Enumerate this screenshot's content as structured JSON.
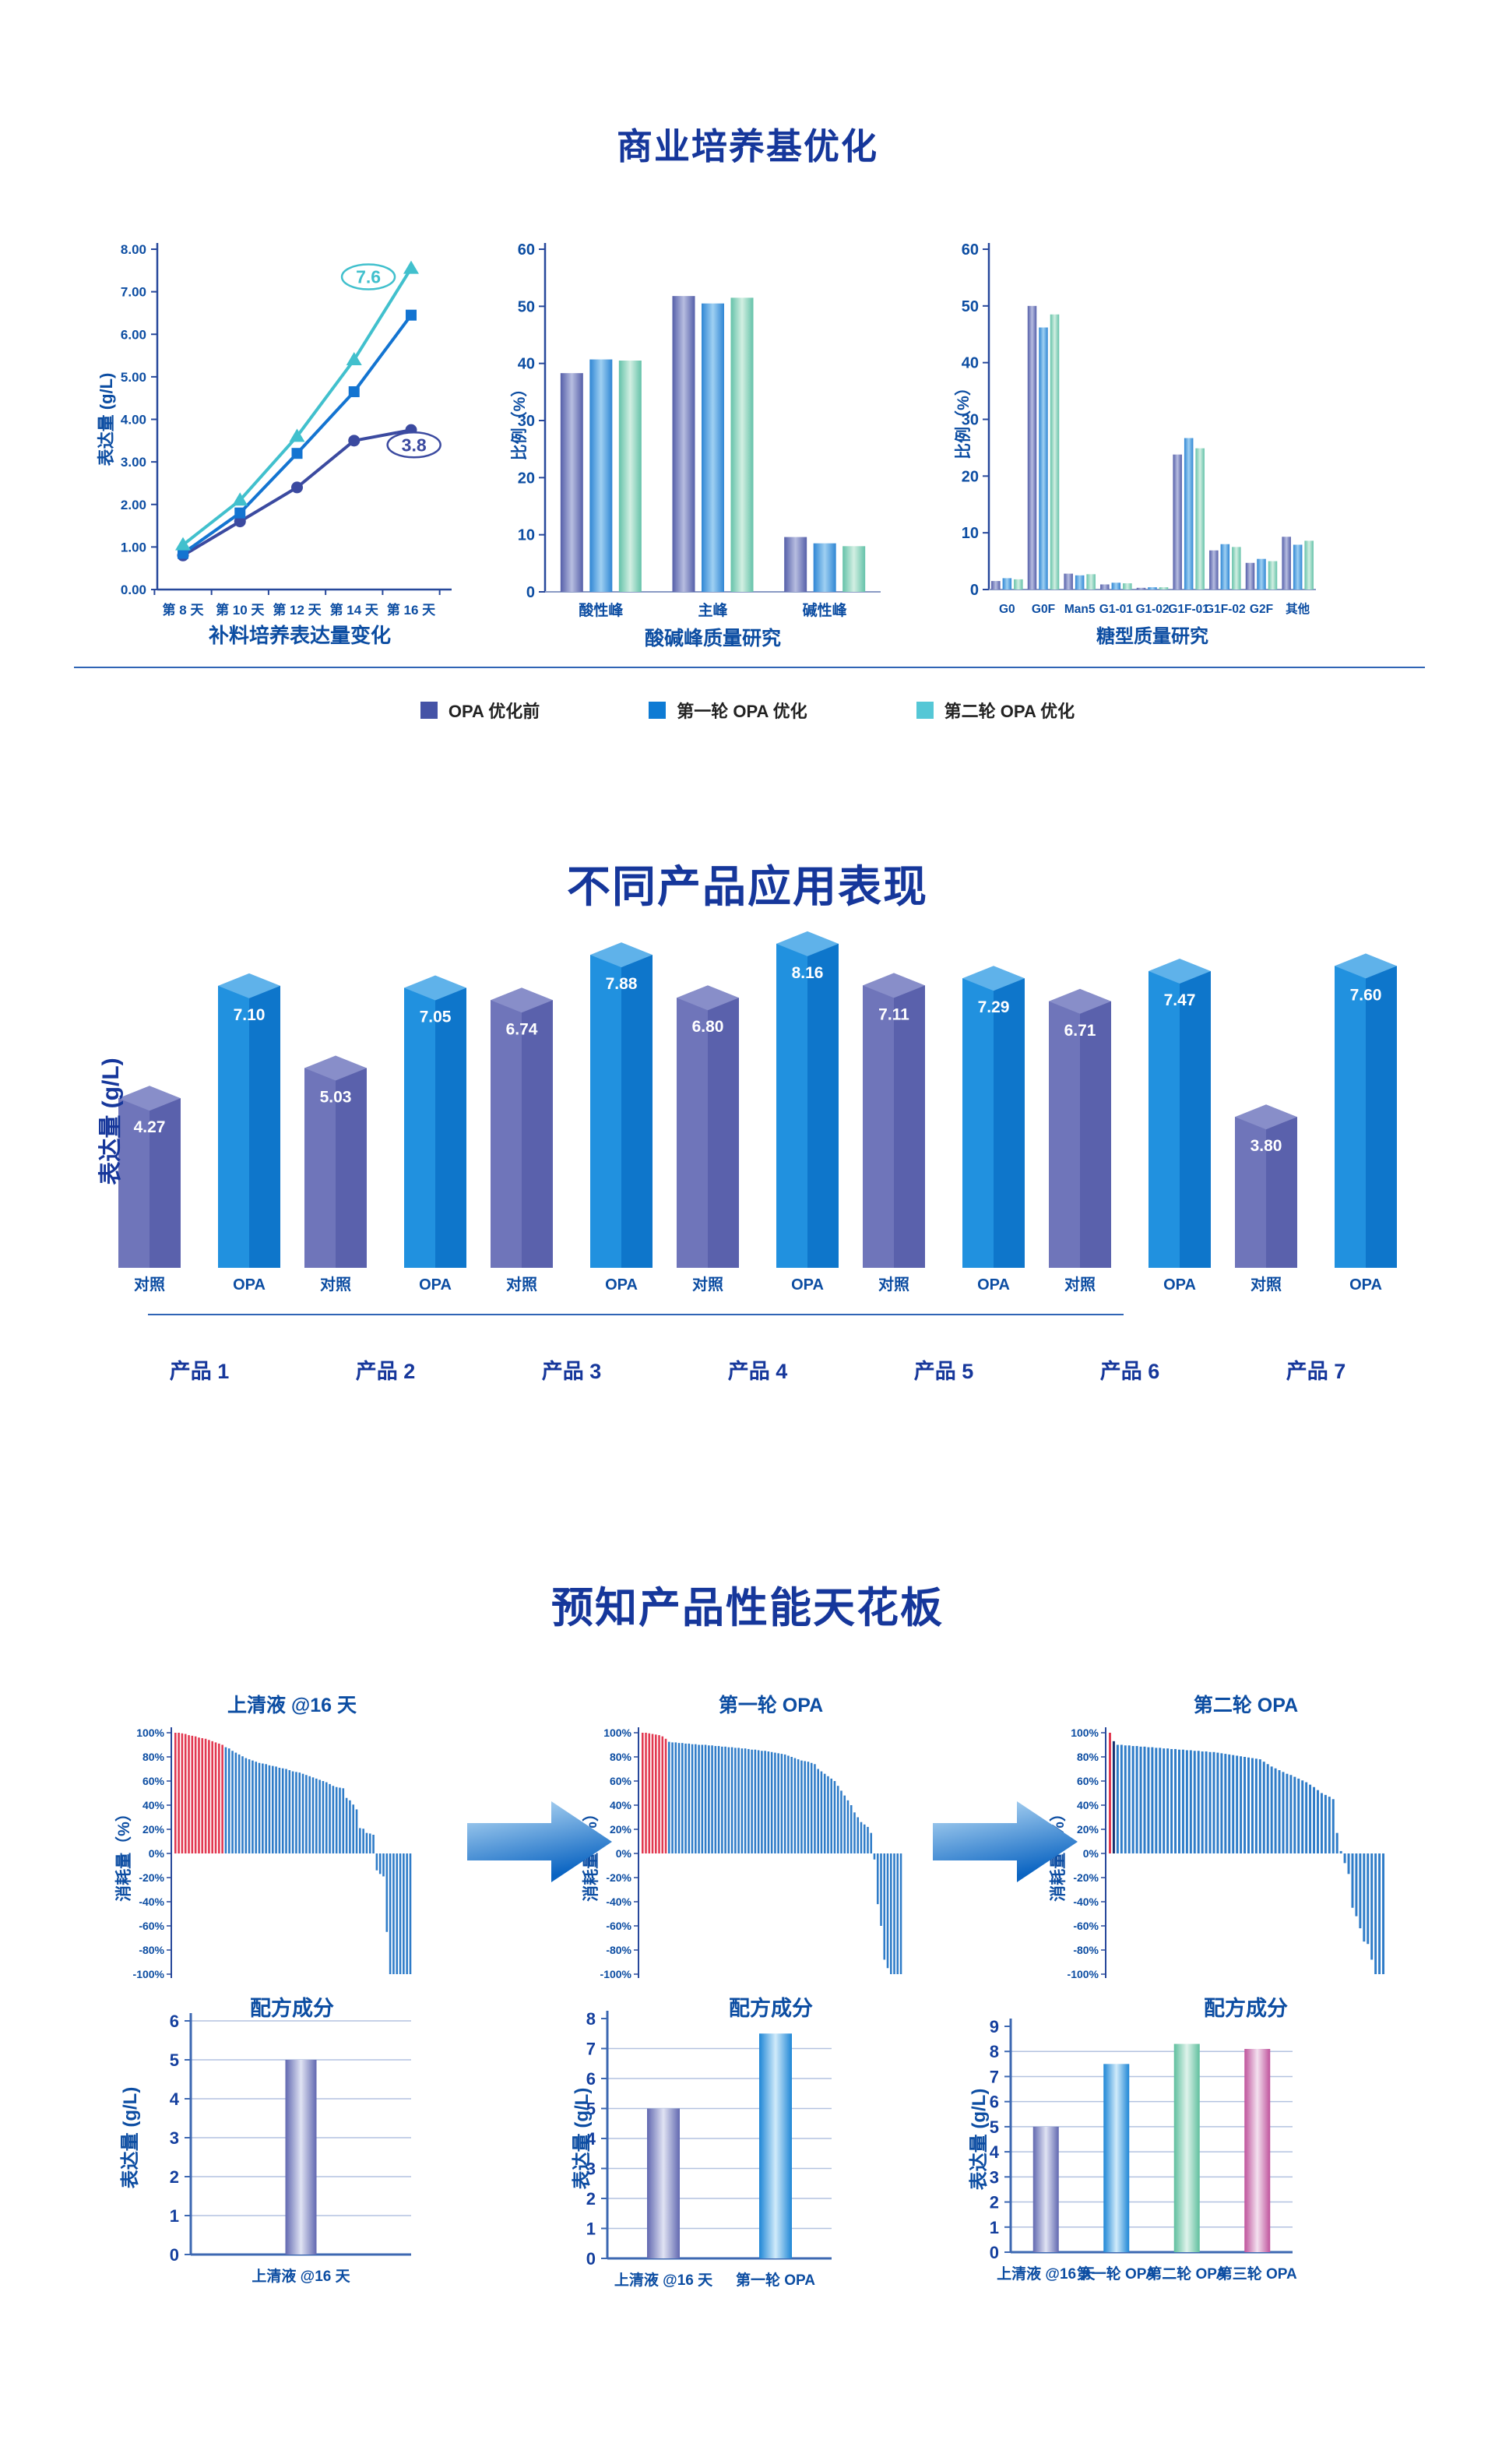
{
  "page": {
    "background": "#ffffff"
  },
  "sections": {
    "s1": {
      "title": "商业培养基优化"
    },
    "s2": {
      "title": "不同产品应用表现"
    },
    "s3": {
      "title": "预知产品性能天花板"
    }
  },
  "legend": {
    "items": [
      {
        "label": "OPA 优化前",
        "color": "#4553A6"
      },
      {
        "label": "第一轮 OPA 优化",
        "color": "#0E7BD4"
      },
      {
        "label": "第二轮 OPA 优化",
        "color": "#55C7D6"
      }
    ]
  },
  "chart_data": [
    {
      "id": "feed-line",
      "type": "line",
      "xlabel": "补料培养表达量变化",
      "ylabel": "表达量 (g/L)",
      "ylim": [
        0,
        8
      ],
      "categories": [
        "第 8 天",
        "第 10 天",
        "第 12 天",
        "第 14 天",
        "第 16 天"
      ],
      "series": [
        {
          "name": "OPA 优化前",
          "marker": "circle",
          "color": "#3B4AA0",
          "values": [
            0.8,
            1.6,
            2.4,
            3.5,
            3.75
          ]
        },
        {
          "name": "第一轮 OPA 优化",
          "marker": "square",
          "color": "#1374D1",
          "values": [
            0.85,
            1.8,
            3.2,
            4.65,
            6.45
          ]
        },
        {
          "name": "第二轮 OPA 优化",
          "marker": "triangle",
          "color": "#41C0CD",
          "values": [
            1.05,
            2.1,
            3.6,
            5.4,
            7.55
          ]
        }
      ],
      "annotations": [
        {
          "text": "7.6",
          "color": "#41C0CD",
          "xi": 3.25,
          "v": 7.35
        },
        {
          "text": "3.8",
          "color": "#3B4AA0",
          "xi": 4.05,
          "v": 3.4
        }
      ]
    },
    {
      "id": "peaks",
      "type": "bar",
      "xlabel": "酸碱峰质量研究",
      "ylabel": "比例（%）",
      "ylim": [
        0,
        60
      ],
      "categories": [
        "酸性峰",
        "主峰",
        "碱性峰"
      ],
      "series": [
        {
          "name": "OPA 优化前",
          "values": [
            38.3,
            51.8,
            9.6
          ]
        },
        {
          "name": "第一轮 OPA 优化",
          "values": [
            40.7,
            50.5,
            8.5
          ]
        },
        {
          "name": "第二轮 OPA 优化",
          "values": [
            40.5,
            51.5,
            8.0
          ]
        }
      ]
    },
    {
      "id": "glycan",
      "type": "bar",
      "xlabel": "糖型质量研究",
      "ylabel": "比例（%）",
      "ylim": [
        0,
        60
      ],
      "categories": [
        "G0",
        "G0F",
        "Man5",
        "G1-01",
        "G1-02",
        "G1F-01",
        "G1F-02",
        "G2F",
        "其他"
      ],
      "series": [
        {
          "name": "OPA 优化前",
          "values": [
            1.5,
            50,
            2.8,
            0.9,
            0.3,
            23.8,
            6.9,
            4.7,
            9.3
          ]
        },
        {
          "name": "第一轮 OPA 优化",
          "values": [
            2.0,
            46.2,
            2.5,
            1.2,
            0.4,
            26.7,
            8.0,
            5.4,
            7.9
          ]
        },
        {
          "name": "第二轮 OPA 优化",
          "values": [
            1.8,
            48.5,
            2.7,
            1.1,
            0.4,
            24.9,
            7.5,
            5.0,
            8.6
          ]
        }
      ]
    },
    {
      "id": "products",
      "type": "bar3d",
      "ylabel": "表达量 (g/L)",
      "bar_labels": [
        "对照",
        "OPA"
      ],
      "groups": [
        {
          "name": "产品 1",
          "values": [
            4.27,
            7.1
          ]
        },
        {
          "name": "产品 2",
          "values": [
            5.03,
            7.05
          ]
        },
        {
          "name": "产品 3",
          "values": [
            6.74,
            7.88
          ]
        },
        {
          "name": "产品 4",
          "values": [
            6.8,
            8.16
          ]
        },
        {
          "name": "产品 5",
          "values": [
            7.11,
            7.29
          ]
        },
        {
          "name": "产品 6",
          "values": [
            6.71,
            7.47
          ]
        },
        {
          "name": "产品 7",
          "values": [
            3.8,
            7.6
          ]
        }
      ]
    },
    {
      "id": "wf-a",
      "type": "waterfall",
      "title": "上清液 @16 天",
      "ylabel": "消耗量（%）",
      "xlabel": "配方成分",
      "ylim": [
        -100,
        100
      ],
      "red_bars": 15,
      "navy_bars": 0,
      "values": [
        100,
        100,
        99.5,
        99,
        98,
        97.5,
        97,
        96,
        95.5,
        95,
        94,
        93,
        92,
        91,
        90,
        88,
        87,
        85,
        83.5,
        82,
        80.5,
        79,
        78,
        77,
        76,
        75,
        74.5,
        74,
        73,
        72.5,
        72,
        71,
        70.5,
        70,
        69,
        68,
        67.5,
        67,
        66,
        65,
        64,
        63,
        62,
        61,
        60,
        59,
        57.5,
        56,
        55,
        54.5,
        54,
        46,
        44,
        40.5,
        36.5,
        21,
        20.5,
        17,
        16.5,
        15.5,
        -14,
        -17,
        -19,
        -65,
        -100,
        -100,
        -100,
        -100,
        -100,
        -100,
        -100
      ]
    },
    {
      "id": "wf-b",
      "type": "waterfall",
      "title": "第一轮 OPA",
      "ylabel": "消耗量（%）",
      "xlabel": "配方成分",
      "ylim": [
        -100,
        100
      ],
      "red_bars": 8,
      "navy_bars": 0,
      "values": [
        100,
        100,
        99.5,
        99,
        98.5,
        98,
        97,
        95,
        92.5,
        92,
        92,
        91.5,
        91.5,
        91,
        91,
        90.5,
        90.5,
        90,
        90,
        90,
        89.5,
        89.5,
        89,
        89,
        88.5,
        88.5,
        88,
        88,
        87.5,
        87.5,
        87,
        87,
        86.5,
        86,
        86,
        85.5,
        85,
        85,
        84.5,
        84,
        83.5,
        83,
        82.5,
        82,
        81,
        80,
        79,
        78,
        77,
        76.5,
        76,
        75,
        74,
        70,
        68,
        66,
        64,
        62,
        60,
        56,
        52,
        48,
        44,
        40,
        34,
        30,
        26,
        24,
        22,
        17,
        -5,
        -42,
        -60,
        -88,
        -95,
        -100,
        -100,
        -100,
        -100
      ]
    },
    {
      "id": "wf-c",
      "type": "waterfall",
      "title": "第二轮 OPA",
      "ylabel": "消耗量（%）",
      "xlabel": "配方成分",
      "ylim": [
        -100,
        100
      ],
      "red_bars": 1,
      "navy_bars": 1,
      "values": [
        100,
        93,
        90,
        90,
        89.5,
        89.5,
        89,
        89,
        88.5,
        88.5,
        88,
        88,
        87.5,
        87.5,
        87,
        87,
        86.5,
        86.5,
        86,
        86,
        85.5,
        85.5,
        85,
        85,
        84.5,
        84.5,
        84,
        84,
        83.5,
        83,
        82.5,
        82,
        81.5,
        81,
        80.5,
        80,
        79.5,
        79,
        78.5,
        78,
        76,
        74,
        72,
        70.5,
        69,
        67.5,
        66,
        65,
        63.5,
        62,
        60.5,
        59,
        57,
        55,
        52.5,
        50,
        48.5,
        47,
        45,
        17,
        2,
        -8,
        -17,
        -45,
        -52,
        -62,
        -73,
        -75,
        -88,
        -100,
        -100,
        -100
      ]
    },
    {
      "id": "ceiling-a",
      "type": "cylbar",
      "ylabel": "表达量 (g/L)",
      "ylim": [
        0,
        6
      ],
      "categories": [
        "上清液 @16 天"
      ],
      "values": [
        5
      ],
      "colors": [
        "purple"
      ]
    },
    {
      "id": "ceiling-b",
      "type": "cylbar",
      "ylabel": "表达量 (g/L)",
      "ylim": [
        0,
        8
      ],
      "categories": [
        "上清液 @16 天",
        "第一轮 OPA"
      ],
      "values": [
        5,
        7.5
      ],
      "colors": [
        "purple",
        "blue"
      ]
    },
    {
      "id": "ceiling-c",
      "type": "cylbar",
      "ylabel": "表达量 (g/L)",
      "ylim": [
        0,
        9
      ],
      "categories": [
        "上清液 @16 天",
        "第一轮 OPA",
        "第二轮 OPA",
        "第三轮 OPA"
      ],
      "values": [
        5,
        7.5,
        8.3,
        8.1
      ],
      "colors": [
        "purple",
        "blue",
        "green",
        "pink"
      ]
    }
  ]
}
